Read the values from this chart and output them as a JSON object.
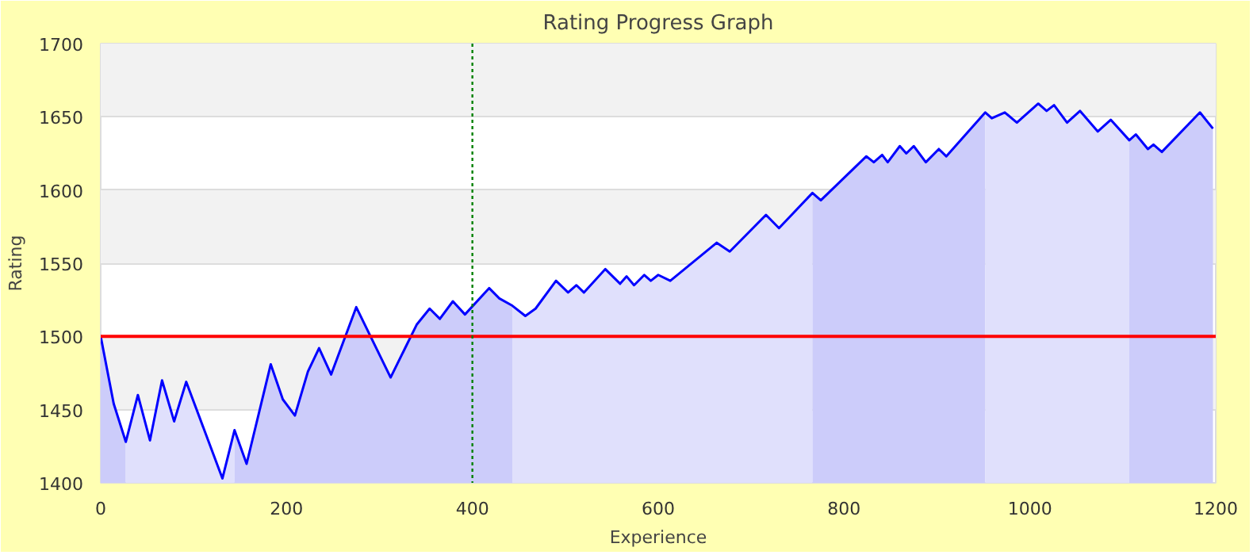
{
  "chart_data": {
    "type": "line",
    "title": "Rating Progress Graph",
    "xlabel": "Experience",
    "ylabel": "Rating",
    "xlim": [
      0,
      1200
    ],
    "ylim": [
      1400,
      1700
    ],
    "xticks": [
      0,
      200,
      400,
      600,
      800,
      1000,
      1200
    ],
    "yticks": [
      1400,
      1450,
      1500,
      1550,
      1600,
      1650,
      1700
    ],
    "grid": "y",
    "marker": "none",
    "line_style": "solid",
    "series": [
      {
        "type": "area",
        "color": "#ccccfa",
        "x": [
          0,
          14,
          27
        ],
        "values": [
          1500,
          1454,
          1428
        ]
      },
      {
        "type": "area",
        "color": "#e0e0fc",
        "x": [
          27,
          40,
          53,
          66,
          79,
          92,
          131,
          144
        ],
        "values": [
          1428,
          1460,
          1429,
          1470,
          1442,
          1469,
          1403,
          1436
        ]
      },
      {
        "type": "area",
        "color": "#ccccfa",
        "x": [
          144,
          157,
          183,
          196,
          209,
          223,
          235,
          248,
          275,
          312,
          340,
          354,
          365,
          379,
          392,
          418,
          429,
          443
        ],
        "values": [
          1436,
          1413,
          1481,
          1457,
          1446,
          1476,
          1492,
          1474,
          1520,
          1472,
          1508,
          1519,
          1512,
          1524,
          1515,
          1533,
          1526,
          1521
        ]
      },
      {
        "type": "area",
        "color": "#e0e0fc",
        "x": [
          443,
          457,
          468,
          490,
          503,
          512,
          520,
          543,
          559,
          566,
          574,
          585,
          592,
          600,
          613,
          663,
          677,
          716,
          730,
          766
        ],
        "values": [
          1521,
          1514,
          1519,
          1538,
          1530,
          1535,
          1530,
          1546,
          1536,
          1541,
          1535,
          1542,
          1538,
          1542,
          1538,
          1564,
          1558,
          1583,
          1574,
          1598
        ]
      },
      {
        "type": "area",
        "color": "#ccccfa",
        "x": [
          766,
          775,
          824,
          832,
          841,
          847,
          860,
          867,
          875,
          888,
          902,
          910,
          952
        ],
        "values": [
          1598,
          1593,
          1623,
          1619,
          1624,
          1619,
          1630,
          1625,
          1630,
          1619,
          1628,
          1623,
          1653
        ]
      },
      {
        "type": "area",
        "color": "#e0e0fc",
        "x": [
          952,
          959,
          973,
          986,
          1009,
          1018,
          1026,
          1040,
          1054,
          1073,
          1087,
          1107
        ],
        "values": [
          1653,
          1649,
          1653,
          1646,
          1659,
          1654,
          1658,
          1646,
          1654,
          1640,
          1648,
          1634
        ]
      },
      {
        "type": "area",
        "color": "#ccccfa",
        "x": [
          1107,
          1114,
          1127,
          1133,
          1142,
          1183,
          1197
        ],
        "values": [
          1634,
          1638,
          1628,
          1631,
          1626,
          1653,
          1642
        ]
      },
      {
        "color": "#0000ff",
        "x": [
          0,
          14,
          27,
          40,
          53,
          66,
          79,
          92,
          131,
          144,
          157,
          183,
          196,
          209,
          223,
          235,
          248,
          275,
          312,
          340,
          354,
          365,
          379,
          392,
          418,
          429,
          443,
          457,
          468,
          490,
          503,
          512,
          520,
          543,
          559,
          566,
          574,
          585,
          592,
          600,
          613,
          663,
          677,
          716,
          730,
          766,
          775,
          824,
          832,
          841,
          847,
          860,
          867,
          875,
          888,
          902,
          910,
          952,
          959,
          973,
          986,
          1009,
          1018,
          1026,
          1040,
          1054,
          1073,
          1087,
          1107,
          1114,
          1127,
          1133,
          1142,
          1183,
          1197
        ],
        "values": [
          1500,
          1454,
          1428,
          1460,
          1429,
          1470,
          1442,
          1469,
          1403,
          1436,
          1413,
          1481,
          1457,
          1446,
          1476,
          1492,
          1474,
          1520,
          1472,
          1508,
          1519,
          1512,
          1524,
          1515,
          1533,
          1526,
          1521,
          1514,
          1519,
          1538,
          1530,
          1535,
          1530,
          1546,
          1536,
          1541,
          1535,
          1542,
          1538,
          1542,
          1538,
          1564,
          1558,
          1583,
          1574,
          1598,
          1593,
          1623,
          1619,
          1624,
          1619,
          1630,
          1625,
          1630,
          1619,
          1628,
          1623,
          1653,
          1649,
          1653,
          1646,
          1659,
          1654,
          1658,
          1646,
          1654,
          1640,
          1648,
          1634,
          1638,
          1628,
          1631,
          1626,
          1653,
          1642
        ]
      }
    ],
    "ref_lines": [
      {
        "axis": "y",
        "value": 1500,
        "color": "#ff0000",
        "line_style": "solid"
      },
      {
        "axis": "x",
        "value": 400,
        "color": "#008000",
        "line_style": "dotted"
      }
    ]
  }
}
